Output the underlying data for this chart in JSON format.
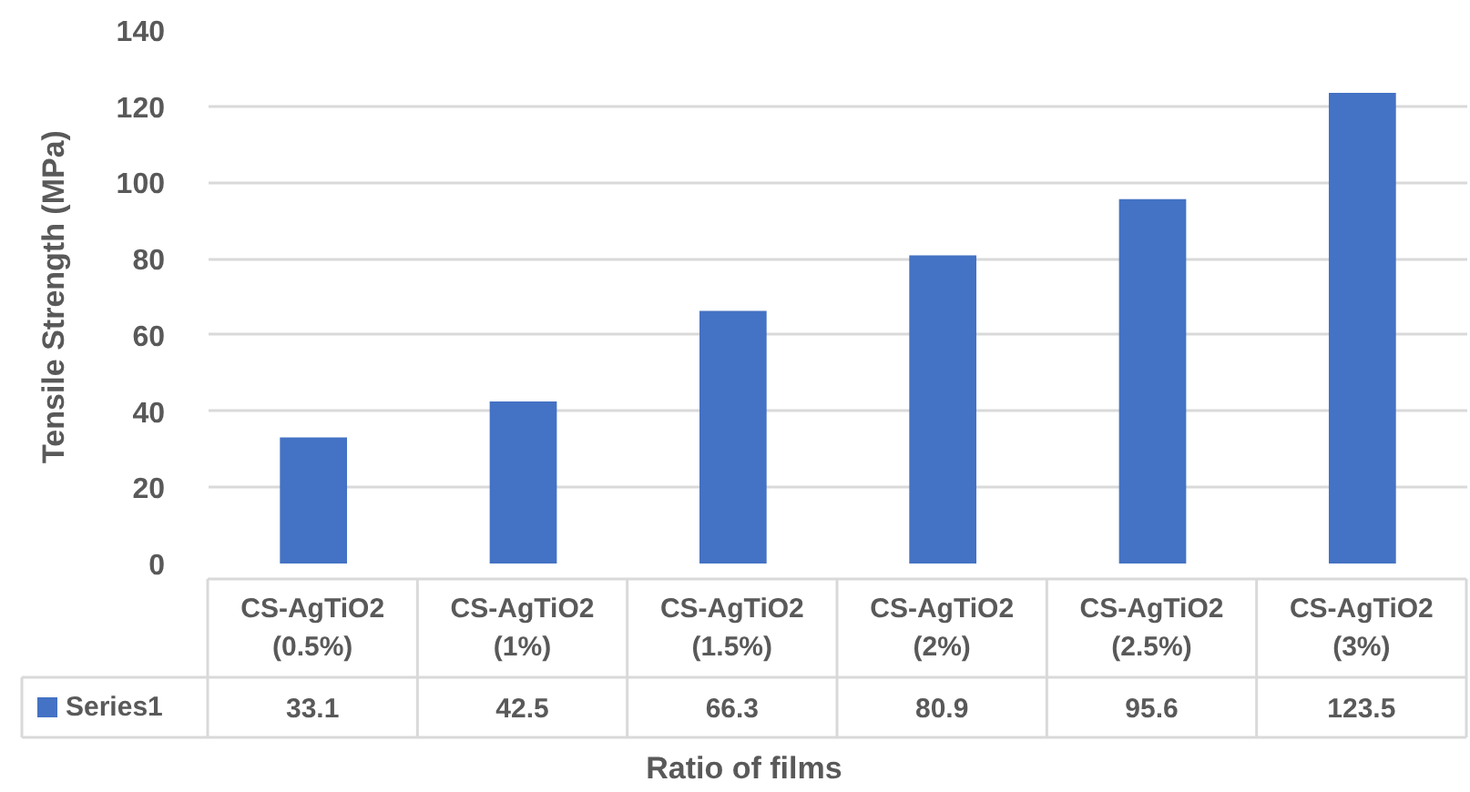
{
  "chart_data": {
    "type": "bar",
    "xlabel": "Ratio of films",
    "ylabel": "Tensile Strength (MPa)",
    "categories": [
      "CS-AgTiO2 (0.5%)",
      "CS-AgTiO2 (1%)",
      "CS-AgTiO2 (1.5%)",
      "CS-AgTiO2 (2%)",
      "CS-AgTiO2 (2.5%)",
      "CS-AgTiO2 (3%)"
    ],
    "series": [
      {
        "name": "Series1",
        "color": "#4472c4",
        "values": [
          33.1,
          42.5,
          66.3,
          80.9,
          95.6,
          123.5
        ]
      }
    ],
    "ylim": [
      0,
      140
    ],
    "yticks": [
      0,
      20,
      40,
      60,
      80,
      100,
      120,
      140
    ],
    "grid": "y",
    "legend": "bottom",
    "data_labels": true
  }
}
